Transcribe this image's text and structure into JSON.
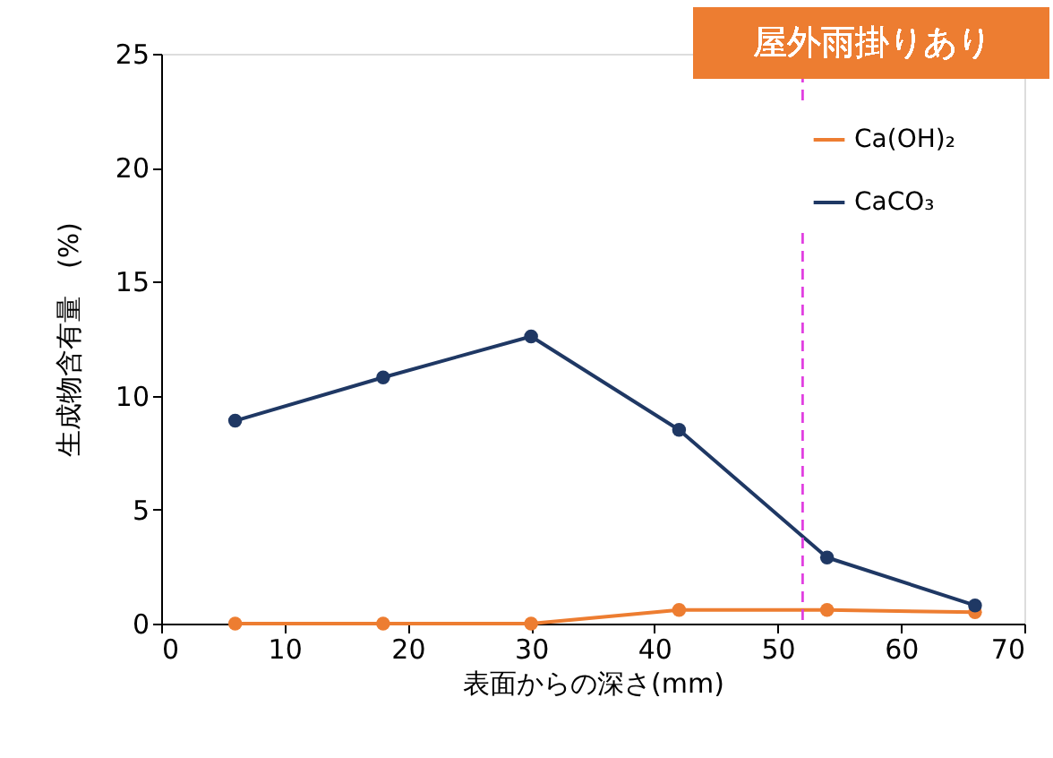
{
  "chart_data": {
    "type": "line",
    "title": "屋外雨掛りあり",
    "xlabel": "表面からの深さ(mm)",
    "ylabel": "生成物含有量　(%)",
    "x": [
      6,
      18,
      30,
      42,
      54,
      66
    ],
    "series": [
      {
        "name": "Ca(OH)₂",
        "color": "#ed7d31",
        "values": [
          0,
          0,
          0,
          0.6,
          0.6,
          0.5
        ]
      },
      {
        "name": "CaCO₃",
        "color": "#1f3864",
        "values": [
          8.9,
          10.8,
          12.6,
          8.5,
          2.9,
          0.8
        ]
      }
    ],
    "xlim": [
      0,
      70
    ],
    "xticks": [
      0,
      10,
      20,
      30,
      40,
      50,
      60,
      70
    ],
    "ylim": [
      0,
      25
    ],
    "yticks": [
      0,
      5,
      10,
      15,
      20,
      25
    ],
    "ref_lines": [
      {
        "axis": "x",
        "value": 52,
        "color": "#e040e0",
        "line_style": "dashed"
      }
    ],
    "grid": false,
    "legend": "top right",
    "marker": "circle",
    "line_style": "solid"
  }
}
